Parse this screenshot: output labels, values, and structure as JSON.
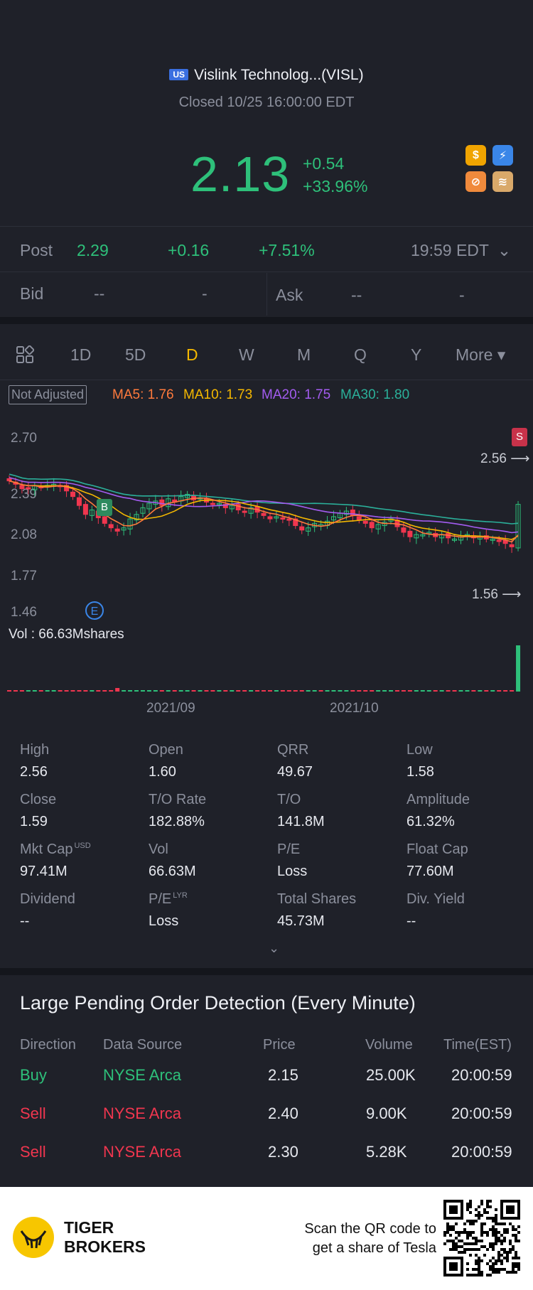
{
  "header": {
    "market_flag": "US",
    "title": "Vislink Technolog...(VISL)",
    "status": "Closed 10/25 16:00:00 EDT",
    "price": "2.13",
    "change": "+0.54",
    "change_pct": "+33.96%",
    "badges": [
      {
        "icon": "dollar-icon",
        "glyph": "$",
        "color": "#f0a400"
      },
      {
        "icon": "lightning-icon",
        "glyph": "⚡",
        "color": "#3a86e8"
      },
      {
        "icon": "no-margin-icon",
        "glyph": "⊘",
        "color": "#f08a3c"
      },
      {
        "icon": "stack-a-icon",
        "glyph": "≋",
        "color": "#d9a96a"
      }
    ]
  },
  "post": {
    "label": "Post",
    "price": "2.29",
    "change": "+0.16",
    "change_pct": "+7.51%",
    "time": "19:59 EDT"
  },
  "bid": {
    "label": "Bid",
    "price": "--",
    "size": "-"
  },
  "ask": {
    "label": "Ask",
    "price": "--",
    "size": "-"
  },
  "tabs": [
    "1D",
    "5D",
    "D",
    "W",
    "M",
    "Q",
    "Y",
    "More ▾"
  ],
  "active_tab": "D",
  "ma": {
    "adjust": "Not Adjusted",
    "ma5": "MA5: 1.76",
    "ma10": "MA10: 1.73",
    "ma20": "MA20: 1.75",
    "ma30": "MA30: 1.80",
    "colors": {
      "ma5": "#ff7a3c",
      "ma10": "#f5b800",
      "ma20": "#a35cf0",
      "ma30": "#2bb09a"
    }
  },
  "chart_data": {
    "type": "candlestick",
    "y_ticks": [
      "2.70",
      "2.39",
      "2.08",
      "1.77",
      "1.46"
    ],
    "x_ticks": [
      "2021/09",
      "2021/10"
    ],
    "ylim": [
      1.46,
      2.7
    ],
    "high_marker": "2.56",
    "low_marker": "1.56",
    "markers": [
      "B",
      "S",
      "E"
    ],
    "closes": [
      2.34,
      2.31,
      2.27,
      2.27,
      2.3,
      2.28,
      2.3,
      2.31,
      2.29,
      2.25,
      2.2,
      2.12,
      2.04,
      2.08,
      2.01,
      1.96,
      1.92,
      1.89,
      1.92,
      2.0,
      2.04,
      2.1,
      2.14,
      2.16,
      2.12,
      2.18,
      2.15,
      2.2,
      2.22,
      2.17,
      2.19,
      2.15,
      2.13,
      2.14,
      2.1,
      2.12,
      2.08,
      2.06,
      2.1,
      2.06,
      2.03,
      2.0,
      2.02,
      2.01,
      1.99,
      1.94,
      1.9,
      1.92,
      1.96,
      1.95,
      1.98,
      2.02,
      2.05,
      2.07,
      2.03,
      1.99,
      1.96,
      1.92,
      1.95,
      1.97,
      2.0,
      1.93,
      1.88,
      1.84,
      1.86,
      1.86,
      1.88,
      1.84,
      1.86,
      1.83,
      1.82,
      1.84,
      1.86,
      1.83,
      1.84,
      1.82,
      1.82,
      1.8,
      1.78,
      1.75,
      2.13
    ],
    "volume_label": "Vol  : 66.63Mshares"
  },
  "stats": [
    {
      "label": "High",
      "value": "2.56"
    },
    {
      "label": "Open",
      "value": "1.60"
    },
    {
      "label": "QRR",
      "value": "49.67"
    },
    {
      "label": "Low",
      "value": "1.58"
    },
    {
      "label": "Close",
      "value": "1.59"
    },
    {
      "label": "T/O Rate",
      "value": "182.88%"
    },
    {
      "label": "T/O",
      "value": "141.8M"
    },
    {
      "label": "Amplitude",
      "value": "61.32%"
    },
    {
      "label": "Mkt Cap",
      "value": "97.41M",
      "sup": "USD"
    },
    {
      "label": "Vol",
      "value": "66.63M"
    },
    {
      "label": "P/E",
      "value": "Loss"
    },
    {
      "label": "Float Cap",
      "value": "77.60M"
    },
    {
      "label": "Dividend",
      "value": "--"
    },
    {
      "label": "P/E",
      "value": "Loss",
      "sup": "LYR"
    },
    {
      "label": "Total Shares",
      "value": "45.73M"
    },
    {
      "label": "Div. Yield",
      "value": "--"
    }
  ],
  "orders": {
    "title": "Large Pending Order Detection (Every Minute)",
    "headers": [
      "Direction",
      "Data Source",
      "Price",
      "Volume",
      "Time(EST)"
    ],
    "rows": [
      {
        "direction": "Buy",
        "source": "NYSE Arca",
        "price": "2.15",
        "volume": "25.00K",
        "time": "20:00:59"
      },
      {
        "direction": "Sell",
        "source": "NYSE Arca",
        "price": "2.40",
        "volume": "9.00K",
        "time": "20:00:59"
      },
      {
        "direction": "Sell",
        "source": "NYSE Arca",
        "price": "2.30",
        "volume": "5.28K",
        "time": "20:00:59"
      }
    ]
  },
  "footer": {
    "brand_line1": "TIGER",
    "brand_line2": "BROKERS",
    "cta_line1": "Scan the QR code to",
    "cta_line2": "get a share of Tesla"
  }
}
